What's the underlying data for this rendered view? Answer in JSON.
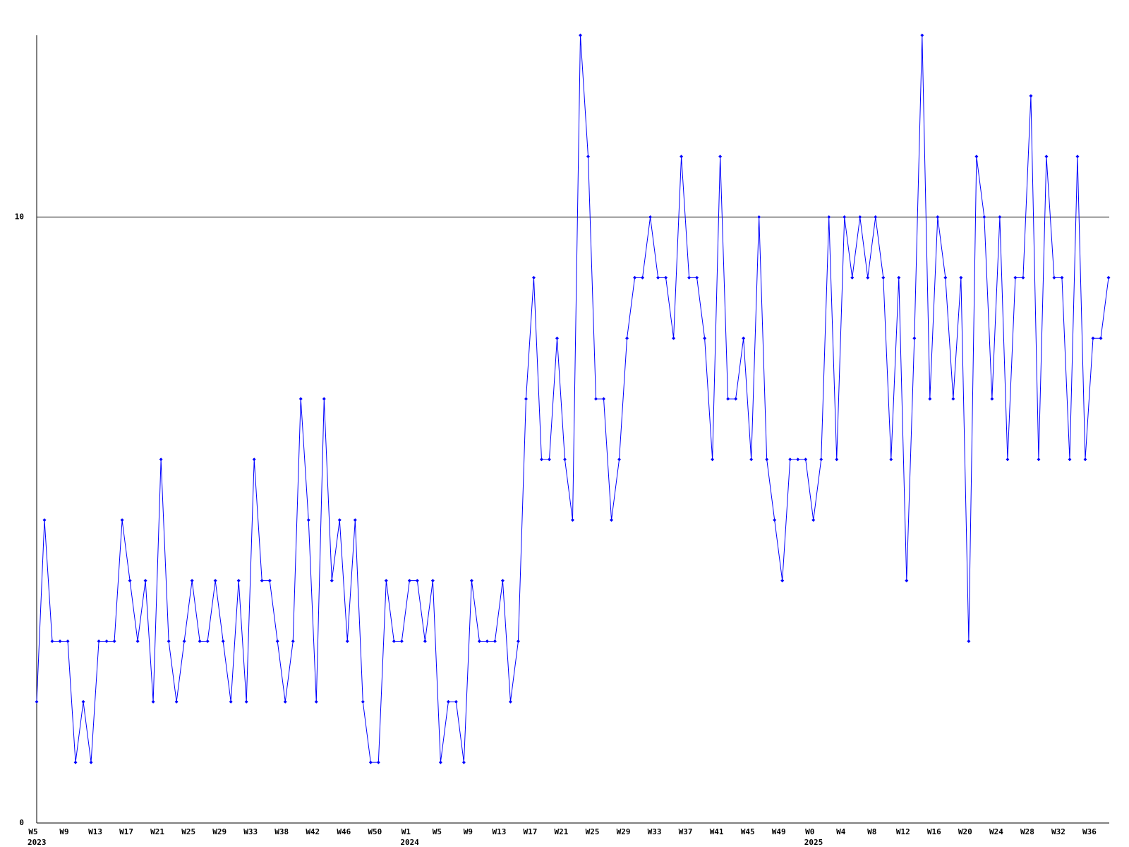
{
  "chart_data": {
    "type": "line",
    "categories": [
      "W5",
      null,
      null,
      null,
      "W9",
      null,
      null,
      null,
      "W13",
      null,
      null,
      null,
      "W17",
      null,
      null,
      null,
      "W21",
      null,
      null,
      null,
      "W25",
      null,
      null,
      null,
      "W29",
      null,
      null,
      null,
      "W33",
      null,
      null,
      null,
      "W38",
      null,
      null,
      null,
      "W42",
      null,
      null,
      null,
      "W46",
      null,
      null,
      null,
      "W50",
      null,
      null,
      null,
      "W1",
      null,
      null,
      null,
      "W5",
      null,
      null,
      null,
      "W9",
      null,
      null,
      null,
      "W13",
      null,
      null,
      null,
      "W17",
      null,
      null,
      null,
      "W21",
      null,
      null,
      null,
      "W25",
      null,
      null,
      null,
      "W29",
      null,
      null,
      null,
      "W33",
      null,
      null,
      null,
      "W37",
      null,
      null,
      null,
      "W41",
      null,
      null,
      null,
      "W45",
      null,
      null,
      null,
      "W49",
      null,
      null,
      null,
      "W0",
      null,
      null,
      null,
      "W4",
      null,
      null,
      null,
      "W8",
      null,
      null,
      null,
      "W12",
      null,
      null,
      null,
      "W16",
      null,
      null,
      null,
      "W20",
      null,
      null,
      null,
      "W24",
      null,
      null,
      null,
      "W28",
      null,
      null,
      null,
      "W32",
      null,
      null,
      null,
      "W36",
      null,
      null
    ],
    "x_year_labels": [
      "2023",
      null,
      null,
      null,
      null,
      null,
      null,
      null,
      null,
      null,
      null,
      null,
      null,
      null,
      null,
      null,
      null,
      null,
      null,
      null,
      null,
      null,
      null,
      null,
      null,
      null,
      null,
      null,
      null,
      null,
      null,
      null,
      null,
      null,
      null,
      null,
      null,
      null,
      null,
      null,
      null,
      null,
      null,
      null,
      null,
      null,
      null,
      null,
      "2024",
      null,
      null,
      null,
      null,
      null,
      null,
      null,
      null,
      null,
      null,
      null,
      null,
      null,
      null,
      null,
      null,
      null,
      null,
      null,
      null,
      null,
      null,
      null,
      null,
      null,
      null,
      null,
      null,
      null,
      null,
      null,
      null,
      null,
      null,
      null,
      null,
      null,
      null,
      null,
      null,
      null,
      null,
      null,
      null,
      null,
      null,
      null,
      null,
      null,
      null,
      null,
      "2025",
      null,
      null,
      null,
      null,
      null,
      null,
      null,
      null,
      null,
      null,
      null,
      null,
      null,
      null,
      null,
      null,
      null,
      null,
      null,
      null,
      null,
      null,
      null,
      null,
      null,
      null,
      null,
      null,
      null,
      null,
      null,
      null,
      null,
      null,
      null,
      null,
      null
    ],
    "values": [
      2,
      5,
      3,
      3,
      3,
      1,
      2,
      1,
      3,
      3,
      3,
      5,
      4,
      3,
      4,
      2,
      6,
      3,
      2,
      3,
      4,
      3,
      3,
      4,
      3,
      2,
      4,
      2,
      6,
      4,
      4,
      3,
      2,
      3,
      7,
      5,
      2,
      7,
      4,
      5,
      3,
      5,
      2,
      1,
      1,
      4,
      3,
      3,
      4,
      4,
      3,
      4,
      1,
      2,
      2,
      1,
      4,
      3,
      3,
      3,
      4,
      2,
      3,
      7,
      9,
      6,
      6,
      8,
      6,
      5,
      13,
      11,
      7,
      7,
      5,
      6,
      8,
      9,
      9,
      10,
      9,
      9,
      8,
      11,
      9,
      9,
      8,
      6,
      11,
      7,
      7,
      8,
      6,
      10,
      6,
      5,
      4,
      6,
      6,
      6,
      5,
      6,
      10,
      6,
      10,
      9,
      10,
      9,
      10,
      9,
      6,
      9,
      4,
      8,
      13,
      7,
      10,
      9,
      7,
      9,
      3,
      11,
      10,
      7,
      10,
      6,
      9,
      9,
      12,
      6,
      11,
      9,
      9,
      6,
      11,
      6,
      8,
      8,
      9
    ],
    "color": "#0000ff",
    "ylim": [
      0,
      13
    ],
    "yticks": [
      0,
      10
    ],
    "grid": true
  }
}
